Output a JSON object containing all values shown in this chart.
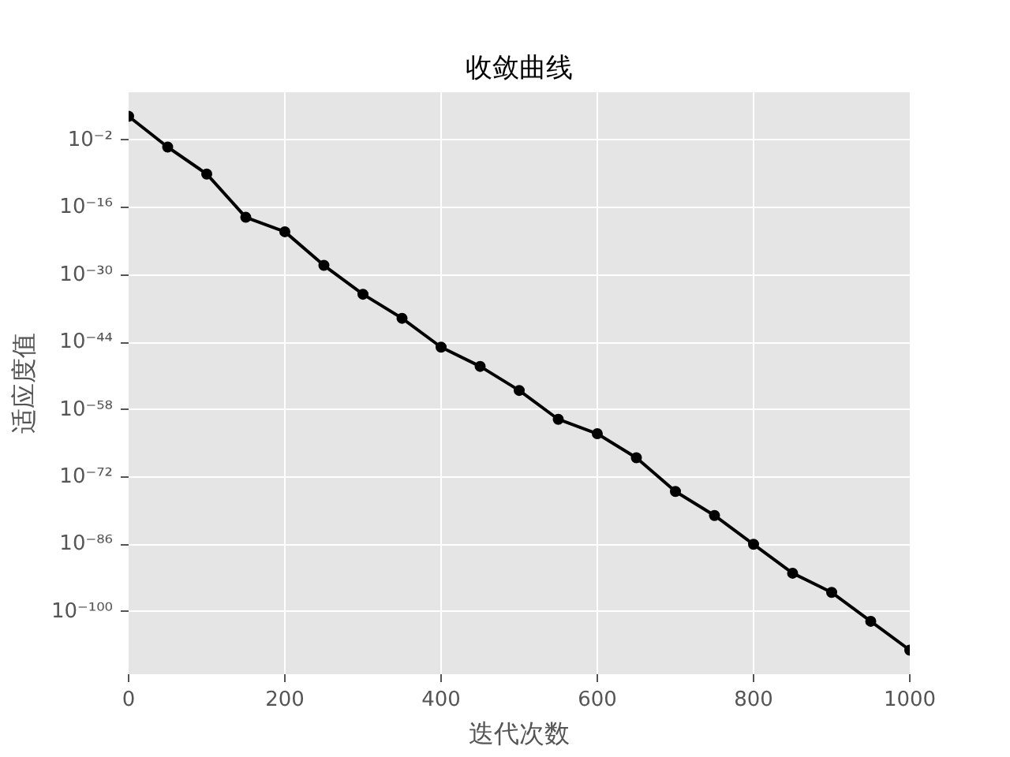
{
  "chart_data": {
    "type": "line",
    "title": "收敛曲线",
    "xlabel": "迭代次数",
    "ylabel": "适应度值",
    "x": [
      0,
      50,
      100,
      150,
      200,
      250,
      300,
      350,
      400,
      450,
      500,
      550,
      600,
      650,
      700,
      750,
      800,
      850,
      900,
      950,
      1000
    ],
    "series": [
      {
        "color": "#000000",
        "values": [
          1000.0,
          0.0004,
          1e-09,
          1e-18,
          1e-21,
          1e-28,
          1e-34,
          1e-39,
          1e-45,
          1e-49,
          1e-54,
          1e-60,
          1e-63,
          1e-68,
          1e-75,
          1e-80,
          1e-86,
          1e-92,
          1e-96,
          1e-102,
          1e-108
        ]
      }
    ],
    "xlim": [
      0,
      1000
    ],
    "ylim": [
      1e-113,
      100000000.0
    ],
    "xticks": [
      0,
      200,
      400,
      600,
      800,
      1000
    ],
    "yticks": [
      {
        "value": 0.01,
        "label": "10⁻²"
      },
      {
        "value": 1e-16,
        "label": "10⁻¹⁶"
      },
      {
        "value": 1e-30,
        "label": "10⁻³⁰"
      },
      {
        "value": 1e-44,
        "label": "10⁻⁴⁴"
      },
      {
        "value": 1e-58,
        "label": "10⁻⁵⁸"
      },
      {
        "value": 1e-72,
        "label": "10⁻⁷²"
      },
      {
        "value": 1e-86,
        "label": "10⁻⁸⁶"
      },
      {
        "value": 1e-100,
        "label": "10⁻¹⁰⁰"
      }
    ],
    "log": true,
    "grid": true,
    "marker": "circle",
    "line_style": "solid"
  }
}
